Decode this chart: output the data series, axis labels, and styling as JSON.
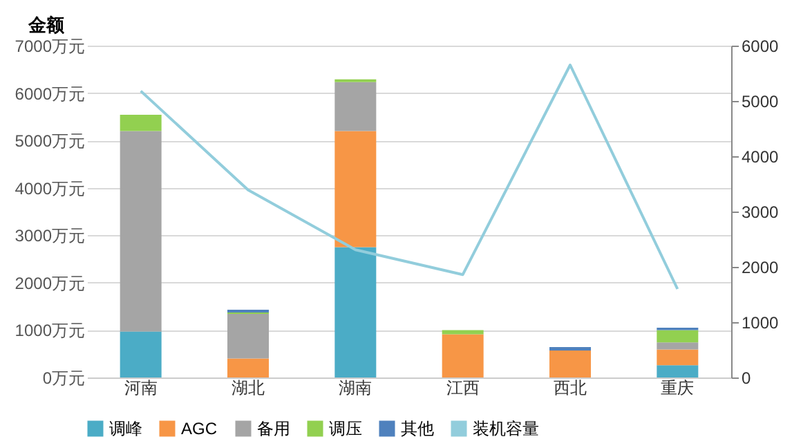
{
  "chart_data": {
    "type": "bar",
    "stacked": true,
    "ylabel": "金额",
    "categories": [
      "河南",
      "湖北",
      "湖南",
      "江西",
      "西北",
      "重庆"
    ],
    "series": [
      {
        "name": "调峰",
        "color": "#4bacc6",
        "values": [
          970,
          0,
          2750,
          0,
          0,
          260
        ]
      },
      {
        "name": "AGC",
        "color": "#f79646",
        "values": [
          0,
          400,
          2450,
          910,
          570,
          330
        ]
      },
      {
        "name": "备用",
        "color": "#a5a5a5",
        "values": [
          4230,
          940,
          1030,
          0,
          0,
          150
        ]
      },
      {
        "name": "调压",
        "color": "#92d050",
        "values": [
          340,
          30,
          60,
          90,
          0,
          260
        ]
      },
      {
        "name": "其他",
        "color": "#4f81bd",
        "values": [
          0,
          60,
          0,
          0,
          70,
          50
        ]
      },
      {
        "name": "装机容量",
        "type": "line",
        "axis": "y2",
        "color": "#92cddc",
        "values": [
          5180,
          3390,
          2310,
          1860,
          5650,
          1600
        ]
      }
    ],
    "ylim": [
      0,
      7000
    ],
    "yticks": [
      {
        "value": 0,
        "label": "0万元"
      },
      {
        "value": 1000,
        "label": "1000万元"
      },
      {
        "value": 2000,
        "label": "2000万元"
      },
      {
        "value": 3000,
        "label": "3000万元"
      },
      {
        "value": 4000,
        "label": "4000万元"
      },
      {
        "value": 5000,
        "label": "5000万元"
      },
      {
        "value": 6000,
        "label": "6000万元"
      },
      {
        "value": 7000,
        "label": "7000万元"
      }
    ],
    "y2lim": [
      0,
      6000
    ],
    "y2ticks": [
      0,
      1000,
      2000,
      3000,
      4000,
      5000,
      6000
    ],
    "grid": "y",
    "legend": "bottom"
  }
}
